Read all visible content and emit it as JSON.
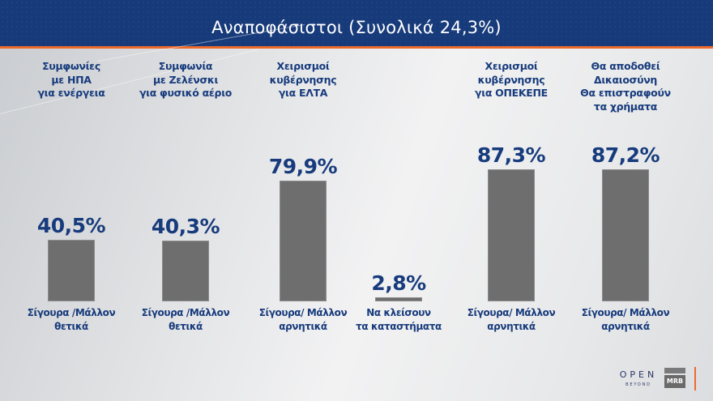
{
  "header": {
    "title": "Αναποφάσιστοι (Συνολικά 24,3%)"
  },
  "columns": [
    {
      "title_lines": [
        "Συμφωνίες",
        "με ΗΠΑ",
        "για ενέργεια"
      ],
      "value_label": "40,5%",
      "bar_label_lines": [
        "Σίγουρα /Μάλλον",
        "θετικά"
      ]
    },
    {
      "title_lines": [
        "Συμφωνία",
        "με Ζελένσκι",
        "για φυσικό αέριο"
      ],
      "value_label": "40,3%",
      "bar_label_lines": [
        "Σίγουρα /Μάλλον",
        "θετικά"
      ]
    },
    {
      "title_lines": [
        "Χειρισμοί",
        "κυβέρνησης",
        "για ΕΛΤΑ"
      ],
      "value_label": "79,9%",
      "bar_label_lines": [
        "Σίγουρα/ Μάλλον",
        "αρνητικά"
      ]
    },
    {
      "title_lines": [],
      "value_label": "2,8%",
      "bar_label_lines": [
        "Να κλείσουν",
        "τα καταστήματα"
      ]
    },
    {
      "title_lines": [
        "Χειρισμοί",
        "κυβέρνησης",
        "για ΟΠΕΚΕΠΕ"
      ],
      "value_label": "87,3%",
      "bar_label_lines": [
        "Σίγουρα/ Μάλλον",
        "αρνητικά"
      ]
    },
    {
      "title_lines": [
        "Θα αποδοθεί",
        "Δικαιοσύνη",
        "Θα επιστραφούν",
        "τα χρήματα"
      ],
      "value_label": "87,2%",
      "bar_label_lines": [
        "Σίγουρα/ Μάλλον",
        "αρνητικά"
      ]
    }
  ],
  "footer": {
    "logo_open": "OPEN",
    "logo_beyond": "BEYOND",
    "logo_mrb": "MRB"
  },
  "colors": {
    "header_bg": "#163a7a",
    "accent_orange": "#ee6a2a",
    "text_blue": "#173b7c",
    "bar_gray": "#6e6e6e"
  },
  "chart_data": {
    "type": "bar",
    "title": "Αναποφάσιστοι (Συνολικά 24,3%)",
    "categories": [
      "Συμφωνίες με ΗΠΑ για ενέργεια — Σίγουρα /Μάλλον θετικά",
      "Συμφωνία με Ζελένσκι για φυσικό αέριο — Σίγουρα /Μάλλον θετικά",
      "Χειρισμοί κυβέρνησης για ΕΛΤΑ — Σίγουρα/ Μάλλον αρνητικά",
      "Χειρισμοί κυβέρνησης για ΕΛΤΑ — Να κλείσουν τα καταστήματα",
      "Χειρισμοί κυβέρνησης για ΟΠΕΚΕΠΕ — Σίγουρα/ Μάλλον αρνητικά",
      "Θα αποδοθεί Δικαιοσύνη Θα επιστραφούν τα χρήματα — Σίγουρα/ Μάλλον αρνητικά"
    ],
    "values": [
      40.5,
      40.3,
      79.9,
      2.8,
      87.3,
      87.2
    ],
    "value_labels": [
      "40,5%",
      "40,3%",
      "79,9%",
      "2,8%",
      "87,3%",
      "87,2%"
    ],
    "xlabel": "",
    "ylabel": "",
    "ylim": [
      0,
      100
    ],
    "grid": false,
    "legend": null
  }
}
